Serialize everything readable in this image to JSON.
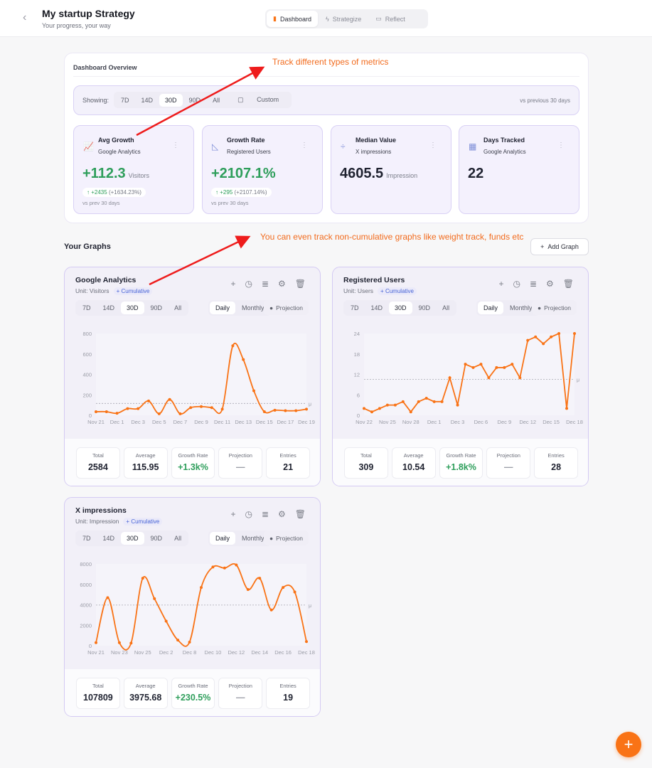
{
  "header": {
    "back_icon": "chevron-left-icon",
    "title": "My startup Strategy",
    "subtitle": "Your progress, your way",
    "nav": [
      {
        "label": "Dashboard",
        "icon": "bar-chart-icon",
        "active": true
      },
      {
        "label": "Strategize",
        "icon": "lightning-icon"
      },
      {
        "label": "Reflect",
        "icon": "message-icon"
      }
    ]
  },
  "overview": {
    "title": "Dashboard Overview",
    "showing_label": "Showing:",
    "ranges": [
      "7D",
      "14D",
      "30D",
      "90D",
      "All"
    ],
    "active_range": "30D",
    "custom_label": "Custom",
    "vs_label": "vs previous 30 days",
    "metrics": [
      {
        "name": "Avg Growth",
        "source": "Google Analytics",
        "value": "+112.3",
        "unit": "Visitors",
        "delta": "+2435",
        "delta_pct": "(+1634.23%)",
        "vs": "vs prev 30 days",
        "icon": "line-chart-icon"
      },
      {
        "name": "Growth Rate",
        "source": "Registered Users",
        "value": "+2107.1%",
        "unit": "",
        "delta": "+295",
        "delta_pct": "(+2107.14%)",
        "vs": "vs prev 30 days",
        "icon": "triangle-ruler-icon"
      },
      {
        "name": "Median Value",
        "source": "X impressions",
        "value": "4605.5",
        "unit": "Impression",
        "icon": "divide-icon"
      },
      {
        "name": "Days Tracked",
        "source": "Google Analytics",
        "value": "22",
        "unit": "",
        "icon": "calendar-icon"
      }
    ]
  },
  "graphs_section": {
    "title": "Your Graphs",
    "add_label": "Add Graph"
  },
  "graph_controls": {
    "ranges": [
      "7D",
      "14D",
      "30D",
      "90D",
      "All"
    ],
    "active_range": "30D",
    "modes": [
      "Daily",
      "Monthly"
    ],
    "active_mode": "Daily",
    "projection_label": "Projection",
    "cumulative_label": "Cumulative"
  },
  "graphs": [
    {
      "title": "Google Analytics",
      "unit": "Unit: Visitors",
      "stats": [
        {
          "label": "Total",
          "value": "2584"
        },
        {
          "label": "Average",
          "value": "115.95"
        },
        {
          "label": "Growth Rate",
          "value": "+1.3k%"
        },
        {
          "label": "Projection",
          "value": "—"
        },
        {
          "label": "Entries",
          "value": "21"
        }
      ]
    },
    {
      "title": "Registered Users",
      "unit": "Unit: Users",
      "stats": [
        {
          "label": "Total",
          "value": "309"
        },
        {
          "label": "Average",
          "value": "10.54"
        },
        {
          "label": "Growth Rate",
          "value": "+1.8k%"
        },
        {
          "label": "Projection",
          "value": "—"
        },
        {
          "label": "Entries",
          "value": "28"
        }
      ]
    },
    {
      "title": "X impressions",
      "unit": "Unit: Impression",
      "stats": [
        {
          "label": "Total",
          "value": "107809"
        },
        {
          "label": "Average",
          "value": "3975.68"
        },
        {
          "label": "Growth Rate",
          "value": "+230.5%"
        },
        {
          "label": "Projection",
          "value": "—"
        },
        {
          "label": "Entries",
          "value": "19"
        }
      ]
    }
  ],
  "chart_data": [
    {
      "type": "line",
      "smooth": true,
      "ylim": [
        0,
        800
      ],
      "yticks": [
        0,
        200,
        400,
        600,
        800
      ],
      "xticks": [
        "Nov 21",
        "Dec 1",
        "Dec 3",
        "Dec 5",
        "Dec 7",
        "Dec 9",
        "Dec 11",
        "Dec 13",
        "Dec 15",
        "Dec 17",
        "Dec 19"
      ],
      "values": [
        35,
        35,
        20,
        65,
        65,
        140,
        15,
        155,
        15,
        75,
        85,
        75,
        60,
        680,
        545,
        240,
        35,
        50,
        45,
        45,
        60
      ],
      "average": 115.95,
      "average_marker": "μ",
      "color": "#f97316"
    },
    {
      "type": "line",
      "smooth": false,
      "ylim": [
        0,
        24
      ],
      "yticks": [
        0,
        6,
        12,
        18,
        24
      ],
      "xticks": [
        "Nov 22",
        "Nov 25",
        "Nov 28",
        "Dec 1",
        "Dec 3",
        "Dec 6",
        "Dec 9",
        "Dec 12",
        "Dec 15",
        "Dec 18"
      ],
      "values": [
        2,
        1,
        2,
        3,
        3,
        4,
        1,
        4,
        5,
        4,
        4,
        11,
        3,
        15,
        14,
        15,
        11,
        14,
        14,
        15,
        11,
        22,
        23,
        21,
        23,
        24,
        2,
        24
      ],
      "average": 10.54,
      "average_marker": "μ",
      "color": "#f97316"
    },
    {
      "type": "line",
      "smooth": true,
      "ylim": [
        0,
        8000
      ],
      "yticks": [
        0,
        2000,
        4000,
        6000,
        8000
      ],
      "xticks": [
        "Nov 21",
        "Nov 23",
        "Nov 25",
        "Dec 2",
        "Dec 8",
        "Dec 10",
        "Dec 12",
        "Dec 14",
        "Dec 16",
        "Dec 18"
      ],
      "values": [
        300,
        4700,
        300,
        250,
        6600,
        4600,
        2400,
        550,
        350,
        5700,
        7700,
        7600,
        7900,
        5500,
        6600,
        3500,
        5700,
        5250,
        400
      ],
      "average": 3975.68,
      "average_marker": "μ",
      "color": "#f97316"
    }
  ],
  "annotations": [
    "Track different types of metrics",
    "You can even track non-cumulative graphs like weight track, funds etc"
  ],
  "fab": {
    "label": "+",
    "icon": "plus-icon"
  },
  "colors": {
    "accent": "#f97316",
    "positive": "#2e9e5b",
    "card_border": "#d4caf3",
    "annotation": "#f26b1d"
  }
}
